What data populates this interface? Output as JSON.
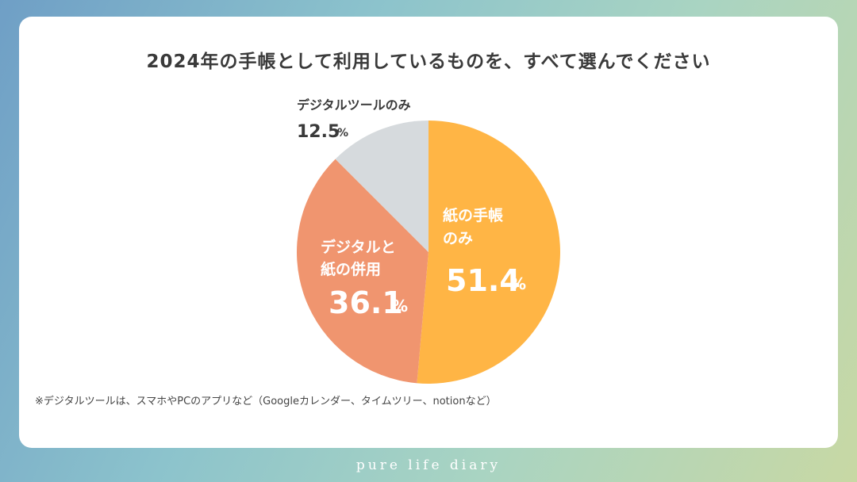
{
  "title": "2024年の手帳として利用しているものを、すべて選んでください",
  "footnote": "※デジタルツールは、スマホやPCのアプリなど（Googleカレンダー、タイムツリー、notionなど）",
  "brand": "pure life diary",
  "colors": {
    "paper_only": "#ffb545",
    "combined": "#f0956f",
    "digital_only": "#d6dadd",
    "dark_text": "#3a3a3a",
    "light_text": "#ffffff"
  },
  "chart_data": {
    "type": "pie",
    "title": "2024年の手帳として利用しているものを、すべて選んでください",
    "unit": "%",
    "slices": [
      {
        "label_lines": [
          "紙の手帳",
          "のみ"
        ],
        "value": 51.4,
        "value_text": "51.4",
        "pct": "%"
      },
      {
        "label_lines": [
          "デジタルと",
          "紙の併用"
        ],
        "value": 36.1,
        "value_text": "36.1",
        "pct": "%"
      },
      {
        "label_lines": [
          "デジタルツールのみ"
        ],
        "value": 12.5,
        "value_text": "12.5",
        "pct": "%"
      }
    ]
  }
}
